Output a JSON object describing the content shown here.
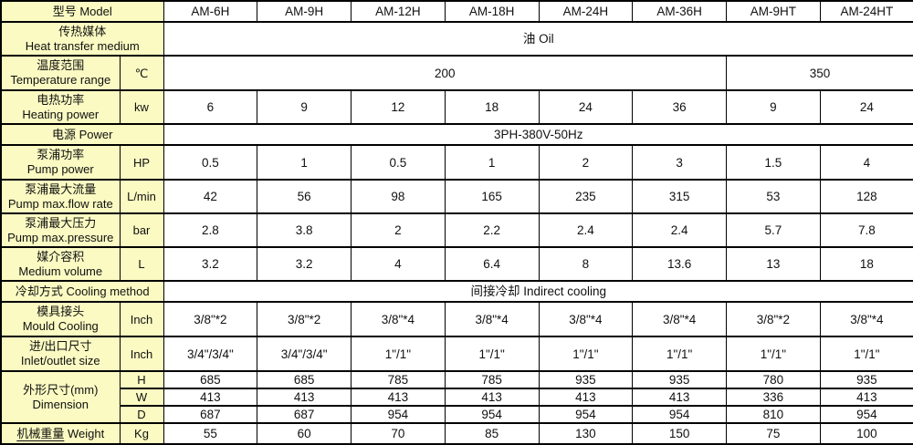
{
  "table": {
    "header": {
      "h": 23,
      "label": "型号  Model",
      "models": [
        "AM-6H",
        "AM-9H",
        "AM-12H",
        "AM-18H",
        "AM-24H",
        "AM-36H",
        "AM-9HT",
        "AM-24HT"
      ]
    },
    "rows": [
      {
        "name": "heat-transfer-medium",
        "type": "span",
        "h": 37,
        "zh": "传热媒体",
        "en": "Heat transfer medium",
        "value": "油 Oil"
      },
      {
        "name": "temperature-range",
        "type": "row",
        "h": 38,
        "zh": "温度范围",
        "en": "Temperature range",
        "unit": "℃",
        "cells": [
          {
            "t": "200",
            "span": 6
          },
          {
            "t": "350",
            "span": 2
          }
        ]
      },
      {
        "name": "heating-power",
        "type": "row",
        "h": 37,
        "zh": "电热功率",
        "en": "Heating power",
        "unit": "kw",
        "cells": [
          "6",
          "9",
          "12",
          "18",
          "24",
          "36",
          "9",
          "24"
        ]
      },
      {
        "name": "power-supply",
        "type": "span",
        "h": 23,
        "label": "电源  Power",
        "value": "3PH-380V-50Hz"
      },
      {
        "name": "pump-power",
        "type": "row",
        "h": 38,
        "zh": "泵浦功率",
        "en": "Pump power",
        "unit": "HP",
        "cells": [
          "0.5",
          "1",
          "0.5",
          "1",
          "2",
          "3",
          "1.5",
          "4"
        ]
      },
      {
        "name": "pump-max-flow-rate",
        "type": "row",
        "h": 37,
        "zh": "泵浦最大流量",
        "en": "Pump max.flow rate",
        "unit": "L/min",
        "cells": [
          "42",
          "56",
          "98",
          "165",
          "235",
          "315",
          "53",
          "128"
        ]
      },
      {
        "name": "pump-max-pressure",
        "type": "row",
        "h": 37,
        "zh": "泵浦最大压力",
        "en": "Pump max.pressure",
        "unit": "bar",
        "cells": [
          "2.8",
          "3.8",
          "2",
          "2.2",
          "2.4",
          "2.4",
          "5.7",
          "7.8"
        ]
      },
      {
        "name": "medium-volume",
        "type": "row",
        "h": 37,
        "zh": "媒介容积",
        "en": "Medium volume",
        "unit": "L",
        "cells": [
          "3.2",
          "3.2",
          "4",
          "6.4",
          "8",
          "13.6",
          "13",
          "18"
        ]
      },
      {
        "name": "cooling-method",
        "type": "span",
        "h": 23,
        "label": "冷却方式  Cooling method",
        "value": "间接冷却 Indirect cooling"
      },
      {
        "name": "mould-cooling",
        "type": "row",
        "h": 38,
        "zh": "模具接头",
        "en": "Mould Cooling",
        "unit": "Inch",
        "cells": [
          "3/8\"*2",
          "3/8\"*2",
          "3/8\"*4",
          "3/8\"*4",
          "3/8\"*4",
          "3/8\"*4",
          "3/8\"*2",
          "3/8\"*4"
        ]
      },
      {
        "name": "inlet-outlet-size",
        "type": "row",
        "h": 38,
        "zh": "进/出口尺寸",
        "en": "Inlet/outlet size",
        "unit": "Inch",
        "cells": [
          "3/4\"/3/4\"",
          "3/4\"/3/4\"",
          "1\"/1\"",
          "1\"/1\"",
          "1\"/1\"",
          "1\"/1\"",
          "1\"/1\"",
          "1\"/1\""
        ]
      },
      {
        "name": "dimension",
        "type": "group",
        "h": 19,
        "zh": "外形尺寸(mm)",
        "en": "Dimension",
        "subrows": [
          {
            "unit": "H",
            "cells": [
              "685",
              "685",
              "785",
              "785",
              "935",
              "935",
              "780",
              "935"
            ]
          },
          {
            "unit": "W",
            "cells": [
              "413",
              "413",
              "413",
              "413",
              "413",
              "413",
              "336",
              "413"
            ]
          },
          {
            "unit": "D",
            "cells": [
              "687",
              "687",
              "954",
              "954",
              "954",
              "954",
              "810",
              "954"
            ]
          }
        ]
      },
      {
        "name": "weight",
        "type": "row",
        "h": 23,
        "inline": true,
        "underline_zh": true,
        "zh": "机械重量",
        "en": "Weight",
        "unit": "Kg",
        "cells": [
          "55",
          "60",
          "70",
          "85",
          "130",
          "150",
          "75",
          "100"
        ]
      }
    ]
  }
}
